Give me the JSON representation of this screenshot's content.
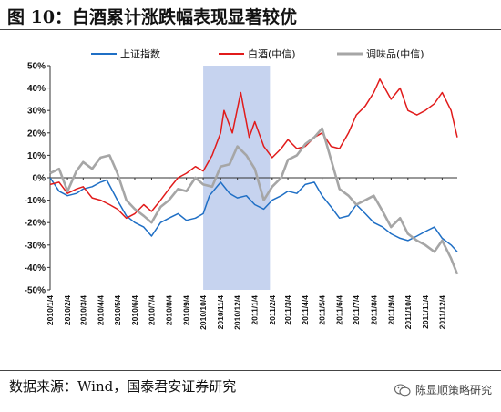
{
  "page": {
    "title": "图 10：白酒累计涨跌幅表现显著较优",
    "source": "数据来源：Wind，国泰君安证券研究",
    "brand": "陈显顺策略研究",
    "brand_icon": "wechat-icon"
  },
  "colors": {
    "blue": "#1f6fc5",
    "red": "#e11b1b",
    "gray": "#a6a6a6",
    "shade": "#c6d3ef"
  },
  "chart_data": {
    "type": "line",
    "ylim": [
      -50,
      50
    ],
    "y_ticks": [
      50,
      40,
      30,
      20,
      10,
      0,
      -10,
      -20,
      -30,
      -40,
      -50
    ],
    "y_tick_labels": [
      "50%",
      "40%",
      "30%",
      "20%",
      "10%",
      "0%",
      "-10%",
      "-20%",
      "-30%",
      "-40%",
      "-50%"
    ],
    "x_range": [
      "2010-01-04",
      "2011-12-31"
    ],
    "x_tick_labels": [
      "2010/1/4",
      "2010/2/4",
      "2010/3/4",
      "2010/4/4",
      "2010/5/4",
      "2010/6/4",
      "2010/7/4",
      "2010/8/4",
      "2010/9/4",
      "2010/10/4",
      "2010/11/4",
      "2010/12/4",
      "2011/1/4",
      "2011/2/4",
      "2011/3/4",
      "2011/4/4",
      "2011/5/4",
      "2011/6/4",
      "2011/7/4",
      "2011/8/4",
      "2011/9/4",
      "2011/10/4",
      "2011/11/4",
      "2011/12/4"
    ],
    "highlight_range": [
      "2010-10-04",
      "2011-01-31"
    ],
    "legend": [
      "上证指数",
      "白酒(中信)",
      "调味品(中信)"
    ],
    "legend_position": "top",
    "series": [
      {
        "name": "上证指数",
        "color": "#1f6fc5",
        "x": [
          "2010-01-04",
          "2010-01-20",
          "2010-02-04",
          "2010-02-20",
          "2010-03-04",
          "2010-03-20",
          "2010-04-04",
          "2010-04-15",
          "2010-05-04",
          "2010-05-20",
          "2010-06-04",
          "2010-06-20",
          "2010-07-04",
          "2010-07-20",
          "2010-08-04",
          "2010-08-20",
          "2010-09-04",
          "2010-09-20",
          "2010-10-04",
          "2010-10-15",
          "2010-11-04",
          "2010-11-20",
          "2010-12-04",
          "2010-12-20",
          "2011-01-04",
          "2011-01-20",
          "2011-02-04",
          "2011-02-20",
          "2011-03-04",
          "2011-03-20",
          "2011-04-04",
          "2011-04-20",
          "2011-05-04",
          "2011-05-20",
          "2011-06-04",
          "2011-06-20",
          "2011-07-04",
          "2011-07-20",
          "2011-08-04",
          "2011-08-20",
          "2011-09-04",
          "2011-09-20",
          "2011-10-04",
          "2011-10-20",
          "2011-11-04",
          "2011-11-20",
          "2011-12-04",
          "2011-12-20",
          "2011-12-31"
        ],
        "y": [
          0,
          -6,
          -8,
          -7,
          -5,
          -4,
          -2,
          -1,
          -10,
          -17,
          -20,
          -22,
          -26,
          -20,
          -18,
          -16,
          -19,
          -18,
          -16,
          -8,
          -2,
          -7,
          -9,
          -8,
          -12,
          -14,
          -10,
          -8,
          -6,
          -7,
          -3,
          -2,
          -8,
          -13,
          -18,
          -17,
          -12,
          -16,
          -20,
          -22,
          -25,
          -27,
          -28,
          -26,
          -24,
          -22,
          -27,
          -30,
          -33
        ]
      },
      {
        "name": "白酒(中信)",
        "color": "#e11b1b",
        "x": [
          "2010-01-04",
          "2010-01-20",
          "2010-02-04",
          "2010-02-20",
          "2010-03-04",
          "2010-03-20",
          "2010-04-04",
          "2010-04-20",
          "2010-05-04",
          "2010-05-20",
          "2010-06-04",
          "2010-06-20",
          "2010-07-04",
          "2010-07-20",
          "2010-08-04",
          "2010-08-20",
          "2010-09-04",
          "2010-09-20",
          "2010-10-04",
          "2010-10-20",
          "2010-11-04",
          "2010-11-10",
          "2010-11-25",
          "2010-12-10",
          "2010-12-25",
          "2011-01-04",
          "2011-01-20",
          "2011-02-04",
          "2011-02-20",
          "2011-03-04",
          "2011-03-20",
          "2011-04-04",
          "2011-04-20",
          "2011-05-04",
          "2011-05-20",
          "2011-06-04",
          "2011-06-20",
          "2011-07-04",
          "2011-07-20",
          "2011-08-04",
          "2011-08-15",
          "2011-09-04",
          "2011-09-20",
          "2011-10-04",
          "2011-10-20",
          "2011-11-04",
          "2011-11-20",
          "2011-12-04",
          "2011-12-20",
          "2011-12-31"
        ],
        "y": [
          -3,
          -2,
          -7,
          -5,
          -4,
          -9,
          -10,
          -12,
          -14,
          -18,
          -16,
          -12,
          -15,
          -10,
          -5,
          0,
          2,
          5,
          3,
          10,
          20,
          30,
          20,
          38,
          18,
          25,
          14,
          9,
          13,
          17,
          13,
          14,
          18,
          20,
          14,
          13,
          20,
          28,
          32,
          38,
          44,
          35,
          40,
          30,
          28,
          30,
          33,
          38,
          30,
          18
        ]
      },
      {
        "name": "调味品(中信)",
        "color": "#a6a6a6",
        "x": [
          "2010-01-04",
          "2010-01-20",
          "2010-02-04",
          "2010-02-20",
          "2010-03-04",
          "2010-03-20",
          "2010-04-04",
          "2010-04-20",
          "2010-05-04",
          "2010-05-20",
          "2010-06-04",
          "2010-06-20",
          "2010-07-04",
          "2010-07-20",
          "2010-08-04",
          "2010-08-20",
          "2010-09-04",
          "2010-09-20",
          "2010-10-04",
          "2010-10-20",
          "2010-11-04",
          "2010-11-20",
          "2010-12-04",
          "2010-12-20",
          "2011-01-04",
          "2011-01-20",
          "2011-02-04",
          "2011-02-20",
          "2011-03-04",
          "2011-03-20",
          "2011-04-04",
          "2011-04-20",
          "2011-05-04",
          "2011-05-20",
          "2011-06-04",
          "2011-06-20",
          "2011-07-04",
          "2011-07-20",
          "2011-08-04",
          "2011-08-20",
          "2011-09-04",
          "2011-09-20",
          "2011-10-04",
          "2011-10-20",
          "2011-11-04",
          "2011-11-20",
          "2011-12-04",
          "2011-12-20",
          "2011-12-31"
        ],
        "y": [
          2,
          4,
          -6,
          3,
          7,
          4,
          9,
          10,
          2,
          -10,
          -14,
          -17,
          -20,
          -13,
          -10,
          -5,
          -6,
          0,
          -3,
          -4,
          5,
          6,
          14,
          10,
          4,
          -10,
          -4,
          0,
          8,
          10,
          15,
          18,
          22,
          8,
          -5,
          -8,
          -12,
          -10,
          -8,
          -15,
          -22,
          -18,
          -25,
          -28,
          -30,
          -33,
          -28,
          -36,
          -43
        ]
      }
    ]
  }
}
